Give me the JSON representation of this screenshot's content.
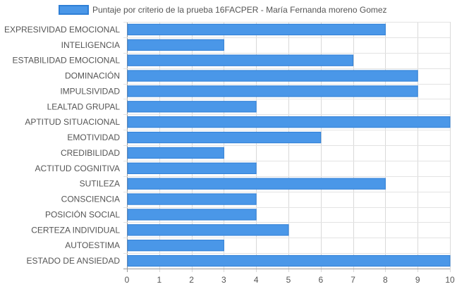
{
  "chart_data": {
    "type": "bar",
    "orientation": "horizontal",
    "legend_position": "top",
    "grid": true,
    "xlim": [
      0,
      10
    ],
    "x_ticks": [
      0,
      1,
      2,
      3,
      4,
      5,
      6,
      7,
      8,
      9,
      10
    ],
    "categories": [
      "EXPRESIVIDAD EMOCIONAL",
      "INTELIGENCIA",
      "ESTABILIDAD EMOCIONAL",
      "DOMINACIÓN",
      "IMPULSIVIDAD",
      "LEALTAD GRUPAL",
      "APTITUD SITUACIONAL",
      "EMOTIVIDAD",
      "CREDIBILIDAD",
      "ACTITUD COGNITIVA",
      "SUTILEZA",
      "CONSCIENCIA",
      "POSICIÓN SOCIAL",
      "CERTEZA INDIVIDUAL",
      "AUTOESTIMA",
      "ESTADO DE ANSIEDAD"
    ],
    "series": [
      {
        "name": "Puntaje por criterio de la prueba 16FACPER - María Fernanda moreno Gomez",
        "color": "#4a97e8",
        "border_color": "#2f7fd6",
        "values": [
          8,
          3,
          7,
          9,
          9,
          4,
          10,
          6,
          3,
          4,
          8,
          4,
          4,
          5,
          3,
          10
        ]
      }
    ]
  }
}
